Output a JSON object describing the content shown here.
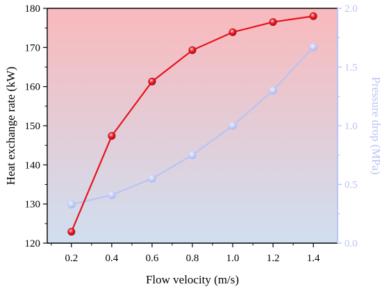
{
  "chart_data": {
    "type": "line",
    "xlabel": "Flow velocity (m/s)",
    "ylabel_left": "Heat exchange rate (kW)",
    "ylabel_right": "Pressure drop (MPa)",
    "x": [
      0.2,
      0.4,
      0.6,
      0.8,
      1.0,
      1.2,
      1.4
    ],
    "x_ticks": [
      "0.2",
      "0.4",
      "0.6",
      "0.8",
      "1.0",
      "1.2",
      "1.4"
    ],
    "xlim": [
      0.08,
      1.52
    ],
    "ylim_left": [
      120,
      180
    ],
    "ylim_right": [
      0.0,
      2.0
    ],
    "y_ticks_left": [
      "120",
      "130",
      "140",
      "150",
      "160",
      "170",
      "180"
    ],
    "y_ticks_right": [
      "0.0",
      "0.5",
      "1.0",
      "1.5",
      "2.0"
    ],
    "series": [
      {
        "axis": "left",
        "color": "#e8101c",
        "marker": "circle",
        "values": [
          122.9,
          147.4,
          161.3,
          169.3,
          173.9,
          176.5,
          178.0
        ]
      },
      {
        "axis": "right",
        "color": "#b8c4f4",
        "marker": "circle",
        "values": [
          0.33,
          0.41,
          0.55,
          0.75,
          1.0,
          1.3,
          1.67
        ]
      }
    ],
    "background_gradient": {
      "top": "#f9b9bc",
      "bottom": "#cfdff0"
    },
    "right_axis_color": "#b8c4f4",
    "grid": false
  }
}
